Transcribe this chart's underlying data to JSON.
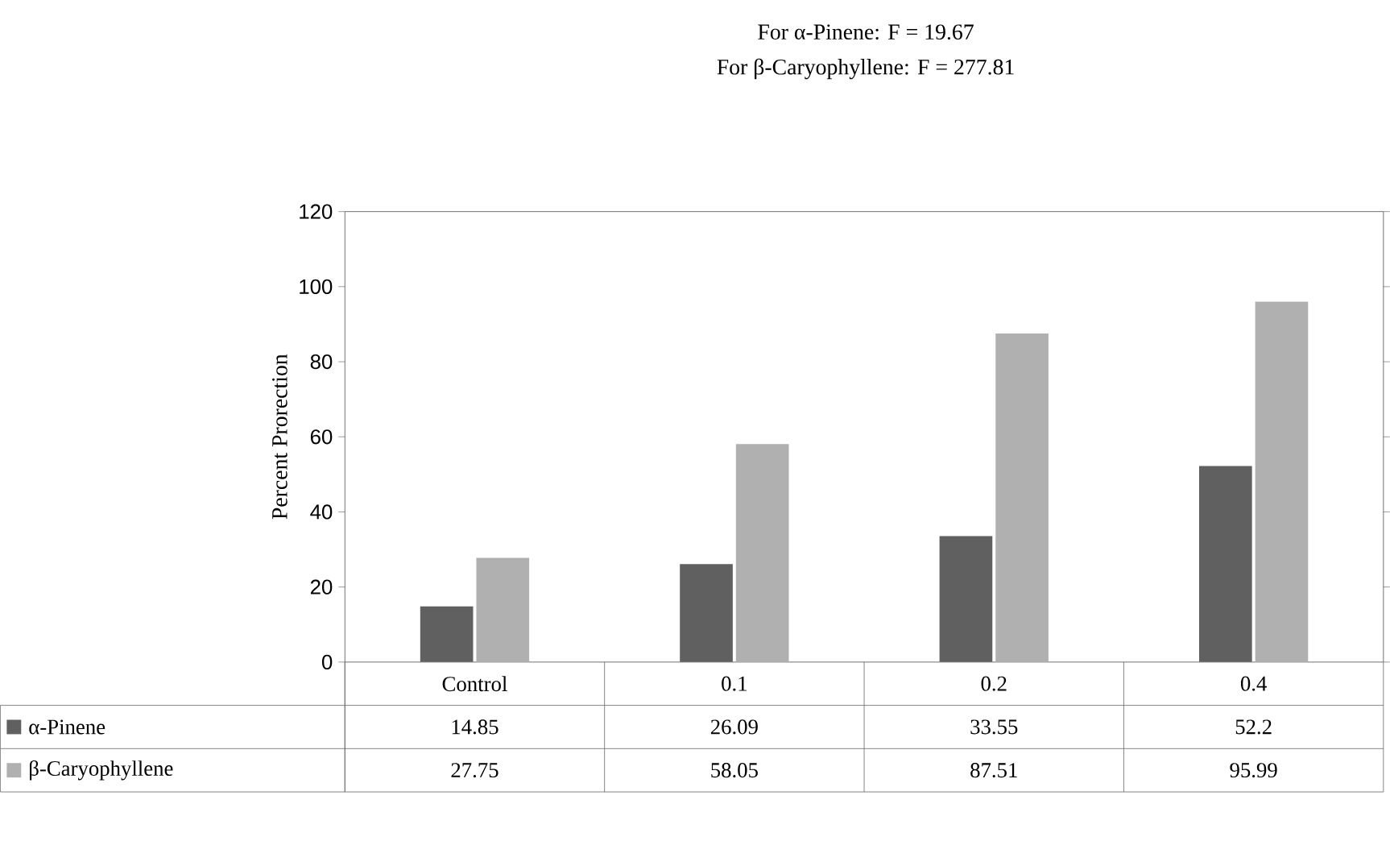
{
  "chart_data": {
    "type": "bar",
    "title": "For α-Pinene: F = 19.67",
    "subtitle": "For β-Caryophyllene: F =  277.81",
    "ylabel": "Percent Prorection",
    "categories": [
      "Control",
      "0.1",
      "0.2",
      "0.4"
    ],
    "series": [
      {
        "name": "α-Pinene",
        "color": "#606060",
        "values": [
          14.85,
          26.09,
          33.55,
          52.2
        ]
      },
      {
        "name": "β-Caryophyllene",
        "color": "#b0b0b0",
        "values": [
          27.75,
          58.05,
          87.51,
          95.99
        ]
      }
    ],
    "ylim": [
      0,
      120
    ],
    "yticks": [
      0,
      20,
      40,
      60,
      80,
      100,
      120
    ],
    "data_labels": true,
    "legend": "bottom"
  }
}
